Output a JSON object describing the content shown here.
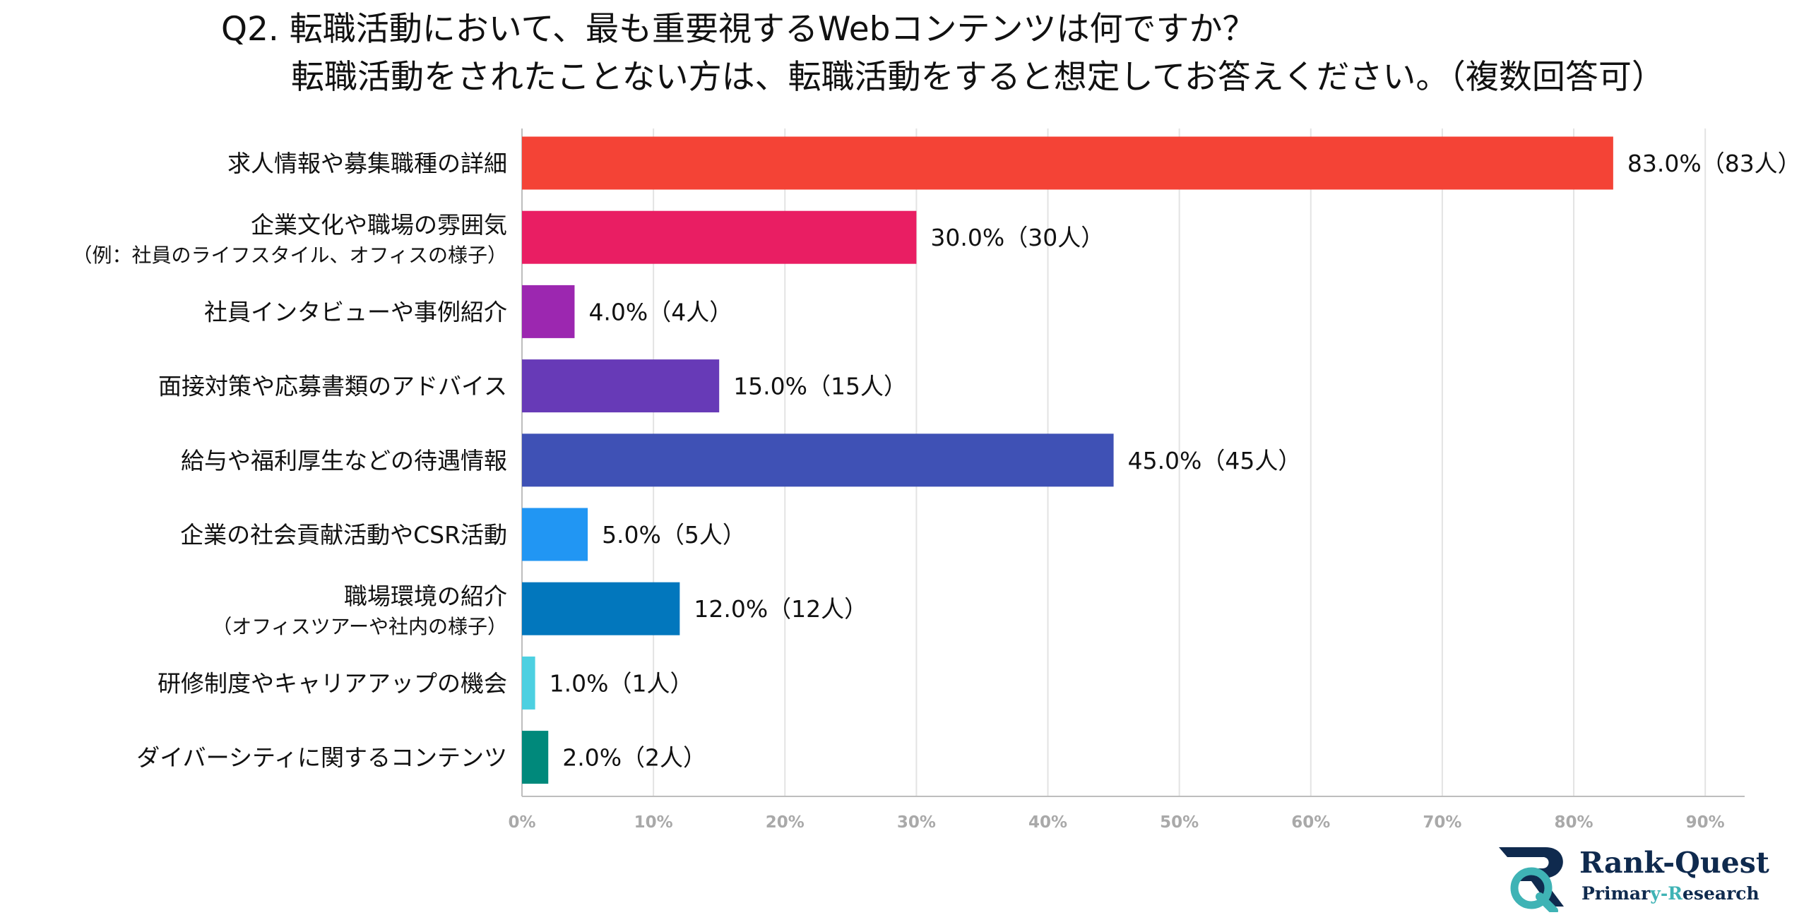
{
  "title_line1": "Q2. 転職活動において、最も重要視するWebコンテンツは何ですか？",
  "title_line2": "転職活動をされたことない方は、転職活動をすると想定してお答えください。（複数回答可）",
  "chart_data": {
    "type": "bar",
    "orientation": "horizontal",
    "categories": [
      [
        "求人情報や募集職種の詳細"
      ],
      [
        "企業文化や職場の雰囲気",
        "（例：社員のライフスタイル、オフィスの様子）"
      ],
      [
        "社員インタビューや事例紹介"
      ],
      [
        "面接対策や応募書類のアドバイス"
      ],
      [
        "給与や福利厚生などの待遇情報"
      ],
      [
        "企業の社会貢献活動やCSR活動"
      ],
      [
        "職場環境の紹介",
        "（オフィスツアーや社内の様子）"
      ],
      [
        "研修制度やキャリアアップの機会"
      ],
      [
        "ダイバーシティに関するコンテンツ"
      ]
    ],
    "values": [
      83.0,
      30.0,
      4.0,
      15.0,
      45.0,
      5.0,
      12.0,
      1.0,
      2.0
    ],
    "data_labels": [
      "83.0%（83人）",
      "30.0%（30人）",
      "4.0%（4人）",
      "15.0%（15人）",
      "45.0%（45人）",
      "5.0%（5人）",
      "12.0%（12人）",
      "1.0%（1人）",
      "2.0%（2人）"
    ],
    "colors": [
      "#f44336",
      "#e91e63",
      "#9c27b0",
      "#673ab7",
      "#3f51b5",
      "#2196f3",
      "#0277bd",
      "#4dd0e1",
      "#00897b"
    ],
    "x_ticks": [
      "0%",
      "10%",
      "20%",
      "30%",
      "40%",
      "50%",
      "60%",
      "70%",
      "80%",
      "90%"
    ],
    "xlim": [
      0,
      93
    ],
    "grid": true,
    "title": "",
    "xlabel": "",
    "ylabel": ""
  },
  "logo": {
    "name": "Rank-Quest",
    "tag_before": "Primar",
    "tag_accent": "y-R",
    "tag_after": "esearch",
    "colors": {
      "dark": "#0f2a4e",
      "accent": "#3fb3b5"
    }
  }
}
